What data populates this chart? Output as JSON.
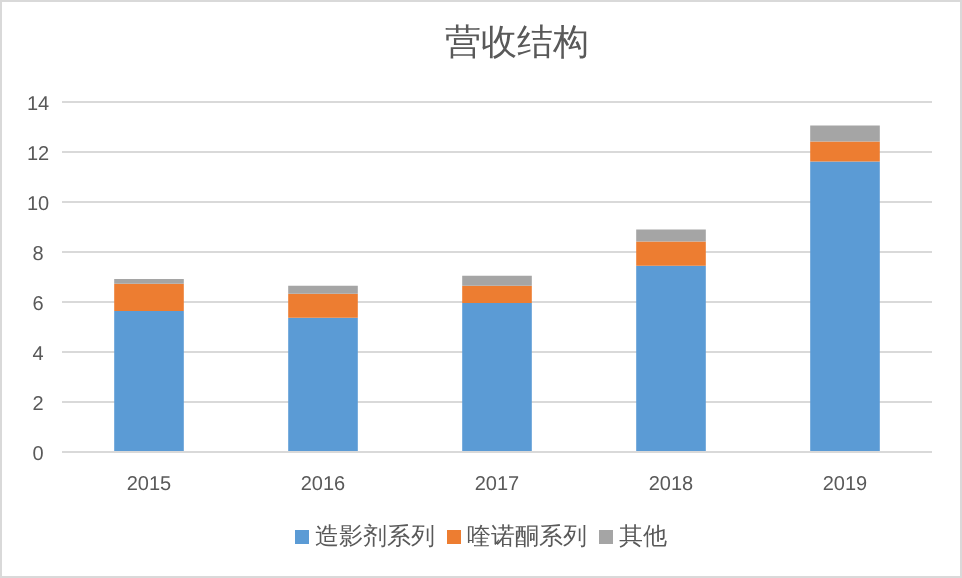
{
  "chart_data": {
    "type": "bar",
    "title": "营收结构",
    "stacked": true,
    "categories": [
      "2015",
      "2016",
      "2017",
      "2018",
      "2019"
    ],
    "series": [
      {
        "name": "造影剂系列",
        "color": "#5b9bd5",
        "values": [
          5.64,
          5.37,
          5.96,
          7.45,
          11.62
        ]
      },
      {
        "name": "喹诺酮系列",
        "color": "#ed7d31",
        "values": [
          1.09,
          0.96,
          0.69,
          0.97,
          0.8
        ]
      },
      {
        "name": "其他",
        "color": "#a5a5a5",
        "values": [
          0.19,
          0.32,
          0.4,
          0.48,
          0.64
        ]
      }
    ],
    "ylim": [
      0,
      14
    ],
    "yticks": [
      0,
      2,
      4,
      6,
      8,
      10,
      12,
      14
    ],
    "grid": "y",
    "legend": "bottom"
  }
}
